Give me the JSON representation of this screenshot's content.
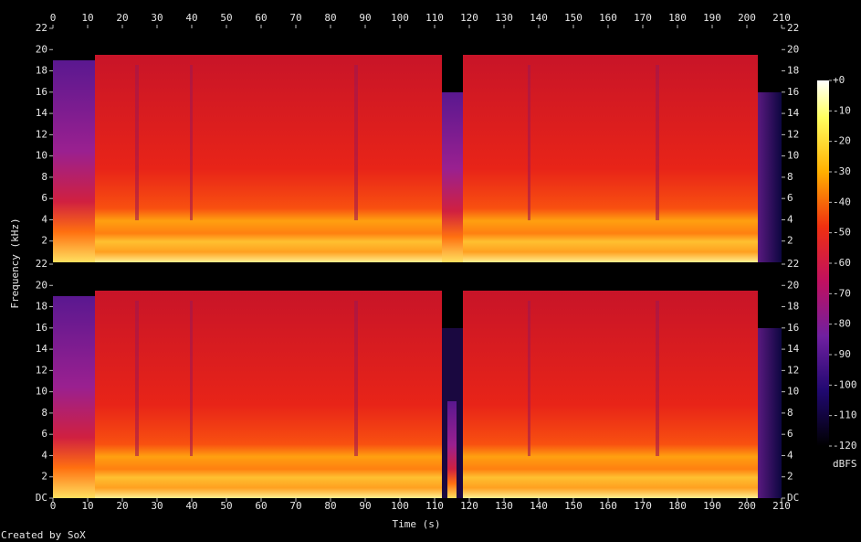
{
  "chart_data": {
    "type": "spectrogram",
    "x_label": "Time (s)",
    "y_label": "Frequency (kHz)",
    "xlim": [
      0,
      210
    ],
    "xticks": [
      0,
      10,
      20,
      30,
      40,
      50,
      60,
      70,
      80,
      90,
      100,
      110,
      120,
      130,
      140,
      150,
      160,
      170,
      180,
      190,
      200,
      210
    ],
    "channels": [
      {
        "ylim": [
          0,
          22
        ],
        "yticks": [
          2,
          4,
          6,
          8,
          10,
          12,
          14,
          16,
          18,
          20,
          22
        ]
      },
      {
        "ylim": [
          0,
          22
        ],
        "yticks": [
          {
            "value": 0,
            "label": "DC"
          },
          2,
          4,
          6,
          8,
          10,
          12,
          14,
          16,
          18,
          20,
          22
        ]
      }
    ],
    "colorbar": {
      "label": "dBFS",
      "lim": [
        -120,
        0
      ],
      "ticks": [
        {
          "value": 0,
          "label": "+0"
        },
        -10,
        -20,
        -30,
        -40,
        -50,
        -60,
        -70,
        -80,
        -90,
        -100,
        -110,
        -120
      ]
    },
    "footer": "Created by SoX"
  }
}
